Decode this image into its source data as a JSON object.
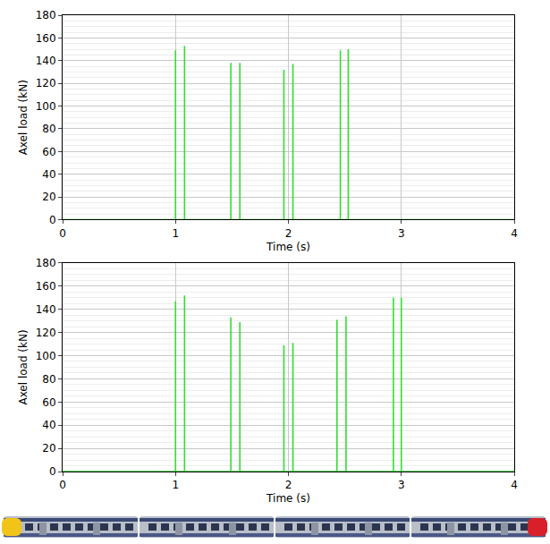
{
  "chart_data": [
    {
      "type": "spike",
      "x_label": "Time (s)",
      "y_label": "Axel load (kN)",
      "x": [
        1.0,
        1.08,
        1.49,
        1.57,
        1.96,
        2.04,
        2.46,
        2.53
      ],
      "values": [
        149,
        153,
        138,
        138,
        132,
        137,
        149,
        150
      ],
      "color": "#33dd33",
      "xlim": [
        0,
        4
      ],
      "xticks": [
        0,
        1,
        2,
        3,
        4
      ],
      "ylim": [
        0,
        180
      ],
      "yticks": [
        0,
        20,
        40,
        60,
        80,
        100,
        120,
        140,
        160,
        180
      ],
      "grid": true
    },
    {
      "type": "spike",
      "x_label": "Time (s)",
      "y_label": "Axel load (kN)",
      "x": [
        1.0,
        1.08,
        1.49,
        1.57,
        1.96,
        2.04,
        2.43,
        2.51,
        2.93,
        3.0
      ],
      "values": [
        147,
        152,
        133,
        129,
        109,
        111,
        131,
        134,
        150,
        150
      ],
      "color": "#33dd33",
      "xlim": [
        0,
        4
      ],
      "xticks": [
        0,
        1,
        2,
        3,
        4
      ],
      "ylim": [
        0,
        180
      ],
      "yticks": [
        0,
        20,
        40,
        60,
        80,
        100,
        120,
        140,
        160,
        180
      ],
      "grid": true
    }
  ]
}
